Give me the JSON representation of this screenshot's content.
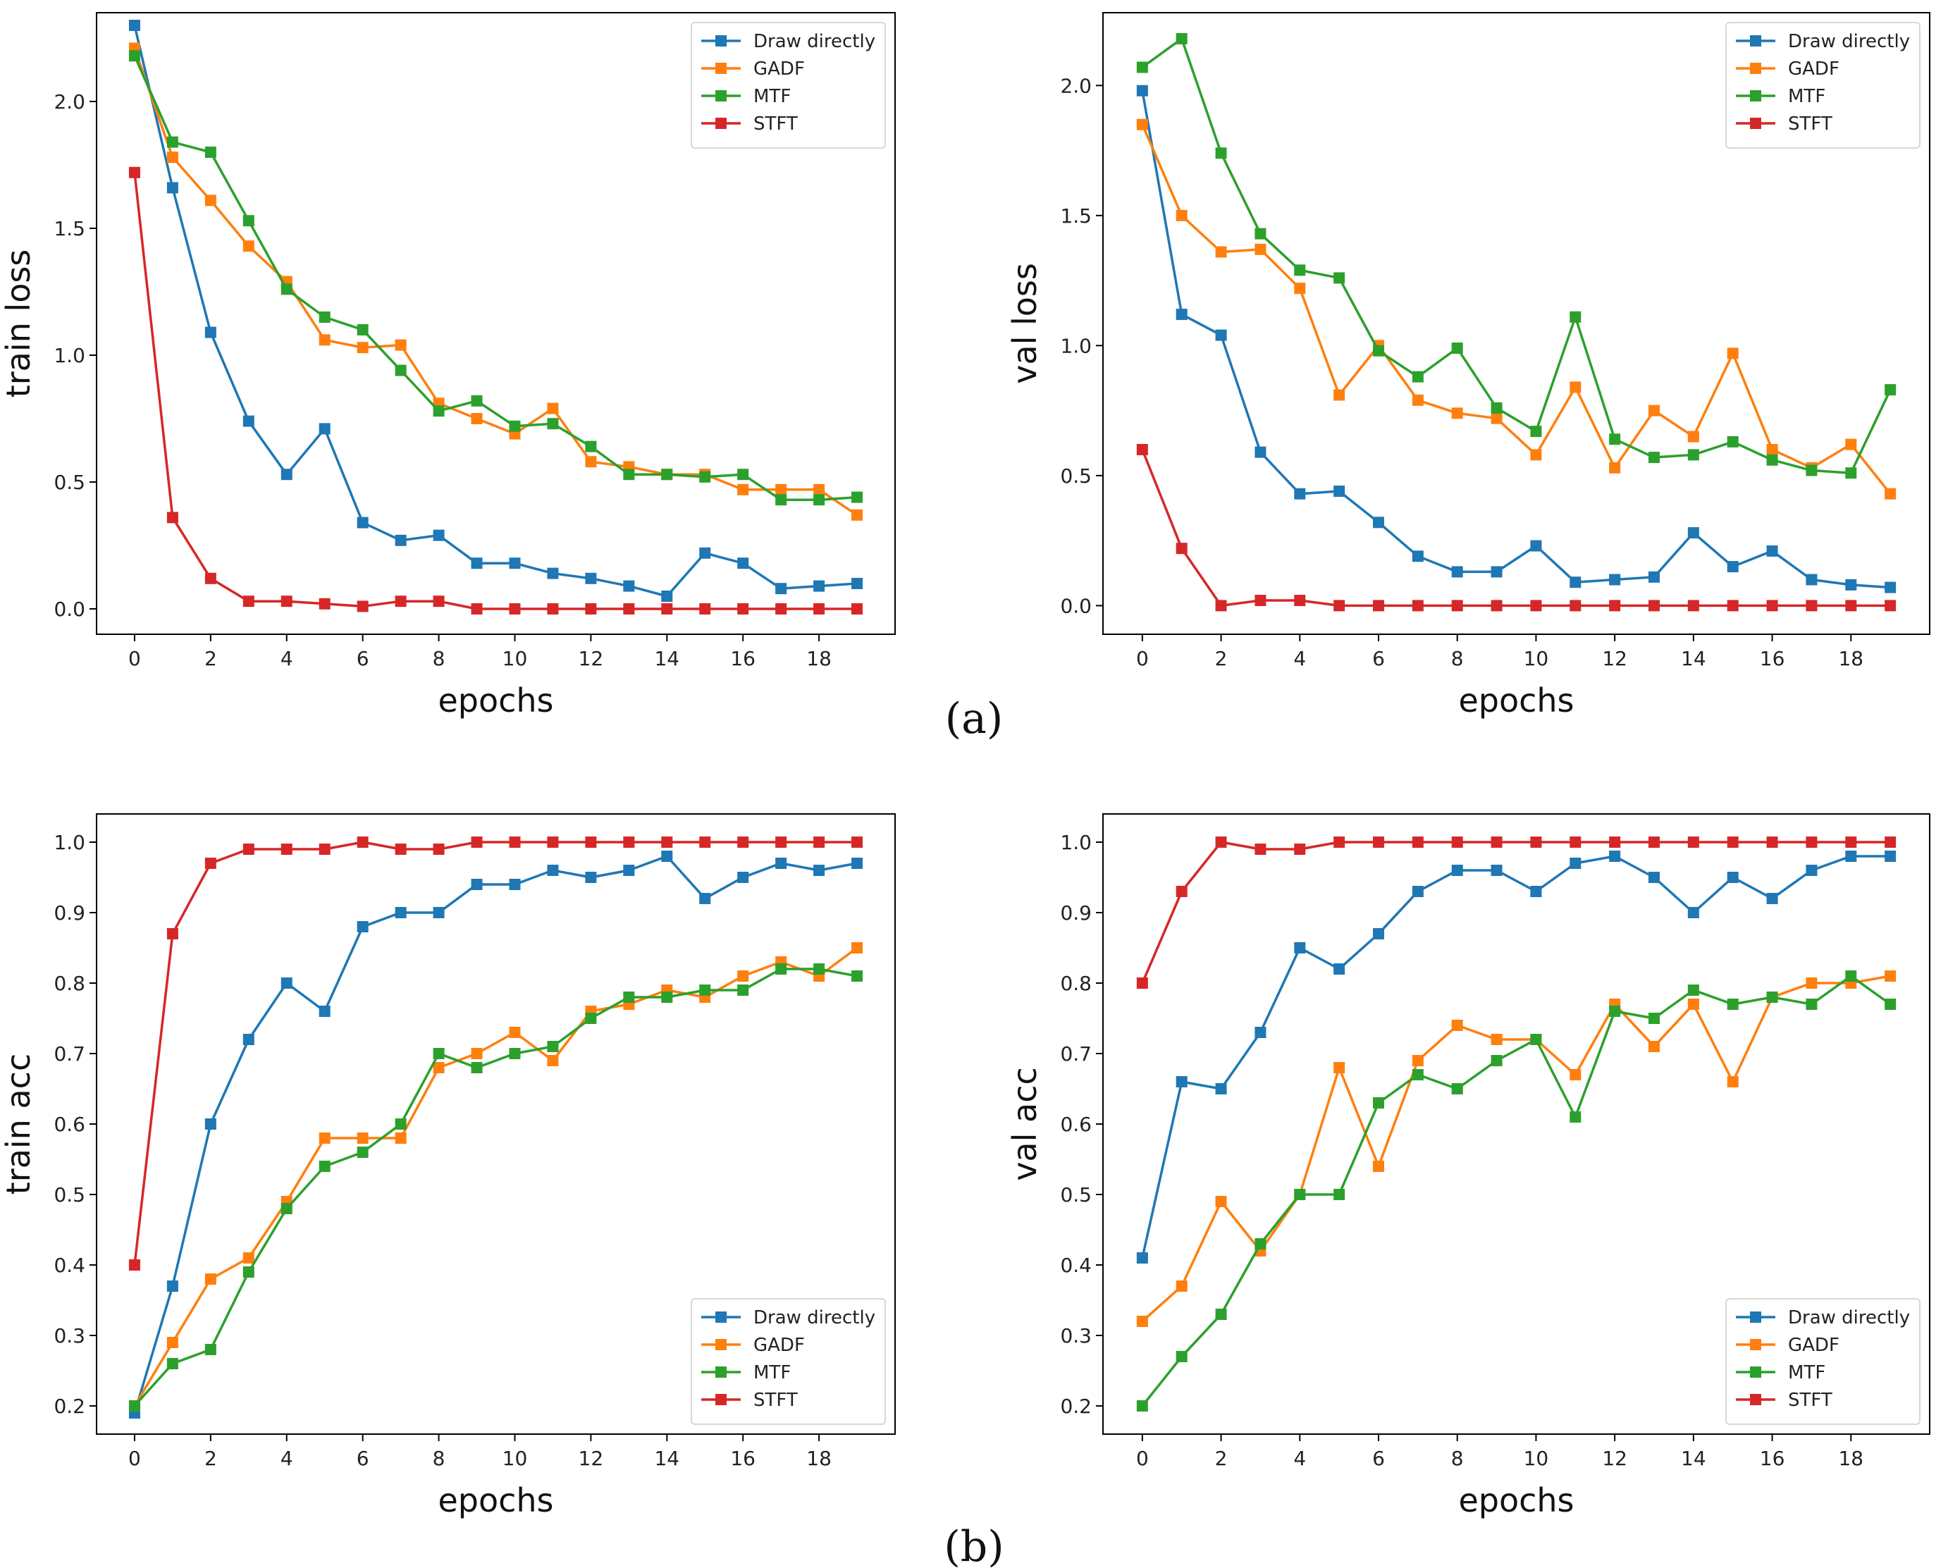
{
  "figure": {
    "captions": [
      "(a)",
      "(b)"
    ]
  },
  "series_colors": {
    "Draw directly": "#1f77b4",
    "GADF": "#ff7f0e",
    "MTF": "#2ca02c",
    "STFT": "#d62728"
  },
  "chart_data": [
    {
      "type": "line",
      "id": "train-loss",
      "title": "",
      "xlabel": "epochs",
      "ylabel": "train loss",
      "xlim": [
        -1,
        20
      ],
      "ylim": [
        -0.1,
        2.35
      ],
      "xticks": [
        0,
        2,
        4,
        6,
        8,
        10,
        12,
        14,
        16,
        18
      ],
      "yticks": [
        0.0,
        0.5,
        1.0,
        1.5,
        2.0
      ],
      "ytick_labels": [
        "0.0",
        "0.5",
        "1.0",
        "1.5",
        "2.0"
      ],
      "legend_loc": "top-right",
      "x": [
        0,
        1,
        2,
        3,
        4,
        5,
        6,
        7,
        8,
        9,
        10,
        11,
        12,
        13,
        14,
        15,
        16,
        17,
        18,
        19
      ],
      "series": [
        {
          "name": "Draw directly",
          "values": [
            2.3,
            1.66,
            1.09,
            0.74,
            0.53,
            0.71,
            0.34,
            0.27,
            0.29,
            0.18,
            0.18,
            0.14,
            0.12,
            0.09,
            0.05,
            0.22,
            0.18,
            0.08,
            0.09,
            0.1
          ]
        },
        {
          "name": "GADF",
          "values": [
            2.21,
            1.78,
            1.61,
            1.43,
            1.29,
            1.06,
            1.03,
            1.04,
            0.81,
            0.75,
            0.69,
            0.79,
            0.58,
            0.56,
            0.53,
            0.53,
            0.47,
            0.47,
            0.47,
            0.37
          ]
        },
        {
          "name": "MTF",
          "values": [
            2.18,
            1.84,
            1.8,
            1.53,
            1.26,
            1.15,
            1.1,
            0.94,
            0.78,
            0.82,
            0.72,
            0.73,
            0.64,
            0.53,
            0.53,
            0.52,
            0.53,
            0.43,
            0.43,
            0.44
          ]
        },
        {
          "name": "STFT",
          "values": [
            1.72,
            0.36,
            0.12,
            0.03,
            0.03,
            0.02,
            0.01,
            0.03,
            0.03,
            0.0,
            0.0,
            0.0,
            0.0,
            0.0,
            0.0,
            0.0,
            0.0,
            0.0,
            0.0,
            0.0
          ]
        }
      ]
    },
    {
      "type": "line",
      "id": "val-loss",
      "title": "",
      "xlabel": "epochs",
      "ylabel": "val loss",
      "xlim": [
        -1,
        20
      ],
      "ylim": [
        -0.11,
        2.28
      ],
      "xticks": [
        0,
        2,
        4,
        6,
        8,
        10,
        12,
        14,
        16,
        18
      ],
      "yticks": [
        0.0,
        0.5,
        1.0,
        1.5,
        2.0
      ],
      "ytick_labels": [
        "0.0",
        "0.5",
        "1.0",
        "1.5",
        "2.0"
      ],
      "legend_loc": "top-right",
      "x": [
        0,
        1,
        2,
        3,
        4,
        5,
        6,
        7,
        8,
        9,
        10,
        11,
        12,
        13,
        14,
        15,
        16,
        17,
        18,
        19
      ],
      "series": [
        {
          "name": "Draw directly",
          "values": [
            1.98,
            1.12,
            1.04,
            0.59,
            0.43,
            0.44,
            0.32,
            0.19,
            0.13,
            0.13,
            0.23,
            0.09,
            0.1,
            0.11,
            0.28,
            0.15,
            0.21,
            0.1,
            0.08,
            0.07
          ]
        },
        {
          "name": "GADF",
          "values": [
            1.85,
            1.5,
            1.36,
            1.37,
            1.22,
            0.81,
            1.0,
            0.79,
            0.74,
            0.72,
            0.58,
            0.84,
            0.53,
            0.75,
            0.65,
            0.97,
            0.6,
            0.53,
            0.62,
            0.43
          ]
        },
        {
          "name": "MTF",
          "values": [
            2.07,
            2.18,
            1.74,
            1.43,
            1.29,
            1.26,
            0.98,
            0.88,
            0.99,
            0.76,
            0.67,
            1.11,
            0.64,
            0.57,
            0.58,
            0.63,
            0.56,
            0.52,
            0.51,
            0.83
          ]
        },
        {
          "name": "STFT",
          "values": [
            0.6,
            0.22,
            0.0,
            0.02,
            0.02,
            0.0,
            0.0,
            0.0,
            0.0,
            0.0,
            0.0,
            0.0,
            0.0,
            0.0,
            0.0,
            0.0,
            0.0,
            0.0,
            0.0,
            0.0
          ]
        }
      ]
    },
    {
      "type": "line",
      "id": "train-acc",
      "title": "",
      "xlabel": "epochs",
      "ylabel": "train acc",
      "xlim": [
        -1,
        20
      ],
      "ylim": [
        0.16,
        1.04
      ],
      "xticks": [
        0,
        2,
        4,
        6,
        8,
        10,
        12,
        14,
        16,
        18
      ],
      "yticks": [
        0.2,
        0.3,
        0.4,
        0.5,
        0.6,
        0.7,
        0.8,
        0.9,
        1.0
      ],
      "ytick_labels": [
        "0.2",
        "0.3",
        "0.4",
        "0.5",
        "0.6",
        "0.7",
        "0.8",
        "0.9",
        "1.0"
      ],
      "legend_loc": "bottom-right",
      "x": [
        0,
        1,
        2,
        3,
        4,
        5,
        6,
        7,
        8,
        9,
        10,
        11,
        12,
        13,
        14,
        15,
        16,
        17,
        18,
        19
      ],
      "series": [
        {
          "name": "Draw directly",
          "values": [
            0.19,
            0.37,
            0.6,
            0.72,
            0.8,
            0.76,
            0.88,
            0.9,
            0.9,
            0.94,
            0.94,
            0.96,
            0.95,
            0.96,
            0.98,
            0.92,
            0.95,
            0.97,
            0.96,
            0.97
          ]
        },
        {
          "name": "GADF",
          "values": [
            0.2,
            0.29,
            0.38,
            0.41,
            0.49,
            0.58,
            0.58,
            0.58,
            0.68,
            0.7,
            0.73,
            0.69,
            0.76,
            0.77,
            0.79,
            0.78,
            0.81,
            0.83,
            0.81,
            0.85
          ]
        },
        {
          "name": "MTF",
          "values": [
            0.2,
            0.26,
            0.28,
            0.39,
            0.48,
            0.54,
            0.56,
            0.6,
            0.7,
            0.68,
            0.7,
            0.71,
            0.75,
            0.78,
            0.78,
            0.79,
            0.79,
            0.82,
            0.82,
            0.81
          ]
        },
        {
          "name": "STFT",
          "values": [
            0.4,
            0.87,
            0.97,
            0.99,
            0.99,
            0.99,
            1.0,
            0.99,
            0.99,
            1.0,
            1.0,
            1.0,
            1.0,
            1.0,
            1.0,
            1.0,
            1.0,
            1.0,
            1.0,
            1.0
          ]
        }
      ]
    },
    {
      "type": "line",
      "id": "val-acc",
      "title": "",
      "xlabel": "epochs",
      "ylabel": "val acc",
      "xlim": [
        -1,
        20
      ],
      "ylim": [
        0.16,
        1.04
      ],
      "xticks": [
        0,
        2,
        4,
        6,
        8,
        10,
        12,
        14,
        16,
        18
      ],
      "yticks": [
        0.2,
        0.3,
        0.4,
        0.5,
        0.6,
        0.7,
        0.8,
        0.9,
        1.0
      ],
      "ytick_labels": [
        "0.2",
        "0.3",
        "0.4",
        "0.5",
        "0.6",
        "0.7",
        "0.8",
        "0.9",
        "1.0"
      ],
      "legend_loc": "bottom-right",
      "x": [
        0,
        1,
        2,
        3,
        4,
        5,
        6,
        7,
        8,
        9,
        10,
        11,
        12,
        13,
        14,
        15,
        16,
        17,
        18,
        19
      ],
      "series": [
        {
          "name": "Draw directly",
          "values": [
            0.41,
            0.66,
            0.65,
            0.73,
            0.85,
            0.82,
            0.87,
            0.93,
            0.96,
            0.96,
            0.93,
            0.97,
            0.98,
            0.95,
            0.9,
            0.95,
            0.92,
            0.96,
            0.98,
            0.98
          ]
        },
        {
          "name": "GADF",
          "values": [
            0.32,
            0.37,
            0.49,
            0.42,
            0.5,
            0.68,
            0.54,
            0.69,
            0.74,
            0.72,
            0.72,
            0.67,
            0.77,
            0.71,
            0.77,
            0.66,
            0.78,
            0.8,
            0.8,
            0.81
          ]
        },
        {
          "name": "MTF",
          "values": [
            0.2,
            0.27,
            0.33,
            0.43,
            0.5,
            0.5,
            0.63,
            0.67,
            0.65,
            0.69,
            0.72,
            0.61,
            0.76,
            0.75,
            0.79,
            0.77,
            0.78,
            0.77,
            0.81,
            0.77
          ]
        },
        {
          "name": "STFT",
          "values": [
            0.8,
            0.93,
            1.0,
            0.99,
            0.99,
            1.0,
            1.0,
            1.0,
            1.0,
            1.0,
            1.0,
            1.0,
            1.0,
            1.0,
            1.0,
            1.0,
            1.0,
            1.0,
            1.0,
            1.0
          ]
        }
      ]
    }
  ]
}
